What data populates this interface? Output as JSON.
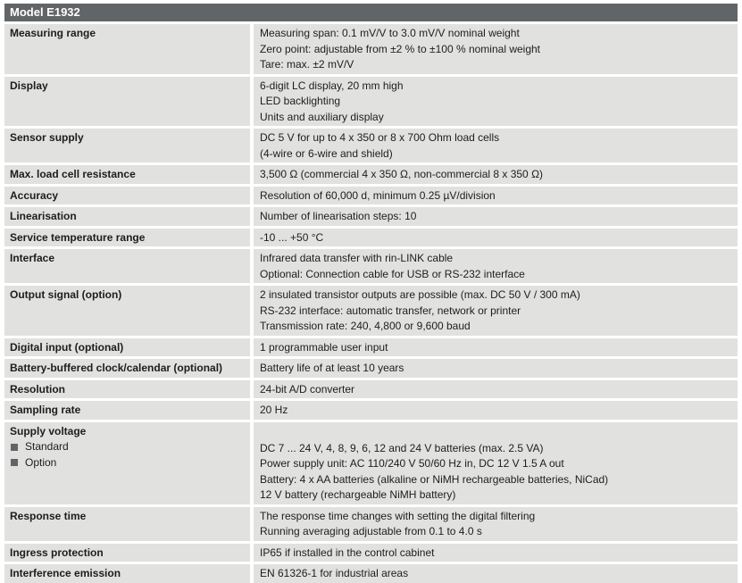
{
  "table": {
    "title": "Model E1932",
    "rows": [
      {
        "label": "Measuring range",
        "values": [
          "Measuring span: 0.1 mV/V to 3.0 mV/V nominal weight",
          "Zero point: adjustable from ±2 % to ±100 % nominal weight",
          "Tare: max. ±2 mV/V"
        ]
      },
      {
        "label": "Display",
        "values": [
          "6-digit LC display, 20 mm high",
          "LED backlighting",
          "Units and auxiliary display"
        ]
      },
      {
        "label": "Sensor supply",
        "values": [
          "DC 5 V for up to 4 x 350 or 8 x 700 Ohm load cells",
          "(4-wire or 6-wire and shield)"
        ]
      },
      {
        "label": "Max. load cell resistance",
        "values": [
          "3,500 Ω (commercial 4 x 350 Ω, non-commercial 8 x 350 Ω)"
        ]
      },
      {
        "label": "Accuracy",
        "values": [
          "Resolution of 60,000 d, minimum 0.25 µV/division"
        ]
      },
      {
        "label": "Linearisation",
        "values": [
          "Number of linearisation steps: 10"
        ]
      },
      {
        "label": "Service temperature range",
        "values": [
          "-10 ... +50 °C"
        ]
      },
      {
        "label": "Interface",
        "values": [
          "Infrared data transfer with rin-LINK cable",
          "Optional: Connection cable for USB or RS-232 interface"
        ]
      },
      {
        "label": "Output signal (option)",
        "values": [
          "2 insulated transistor outputs are possible (max. DC 50 V / 300 mA)",
          "RS-232 interface: automatic transfer, network or printer",
          "Transmission rate: 240, 4,800 or 9,600 baud"
        ]
      },
      {
        "label": "Digital input (optional)",
        "values": [
          "1 programmable user input"
        ]
      },
      {
        "label": "Battery-buffered clock/calendar (optional)",
        "values": [
          "Battery life of at least 10 years"
        ]
      },
      {
        "label": "Resolution",
        "values": [
          "24-bit A/D converter"
        ]
      },
      {
        "label": "Sampling rate",
        "values": [
          "20 Hz"
        ]
      },
      {
        "label": "Supply voltage",
        "bullets": [
          "Standard",
          "Option"
        ],
        "values": [
          "DC 7 ... 24 V, 4, 8, 9, 6, 12 and 24 V batteries (max. 2.5 VA)",
          "Power supply unit: AC 110/240 V 50/60 Hz in, DC 12 V 1.5 A out",
          "Battery: 4 x AA batteries (alkaline or NiMH rechargeable batteries, NiCad)",
          "12 V battery (rechargeable NiMH battery)"
        ]
      },
      {
        "label": "Response time",
        "values": [
          "The response time changes with setting the digital filtering",
          "Running averaging adjustable from 0.1 to 4.0 s"
        ]
      },
      {
        "label": "Ingress protection",
        "values": [
          "IP65 if installed in the control cabinet"
        ]
      },
      {
        "label": "Interference emission",
        "values": [
          "EN 61326-1 for industrial areas"
        ]
      }
    ]
  },
  "theme": {
    "header_bg": "#626567",
    "header_text": "#ffffff",
    "row_bg": "#e1e1df",
    "text_color": "#1d1d1b",
    "bullet_color": "#626567",
    "page_bg": "#ffffff"
  }
}
